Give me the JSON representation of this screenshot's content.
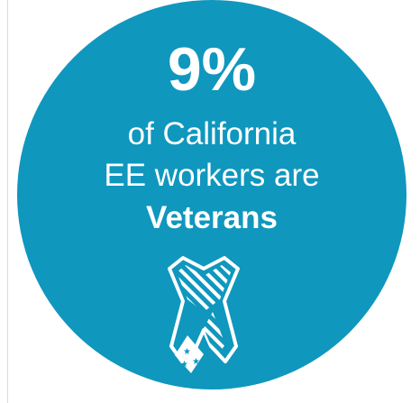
{
  "infographic": {
    "stat": "9%",
    "line1": "of California",
    "line2": "EE workers are",
    "emphasis": "Veterans"
  },
  "icons": {
    "ribbon": "ribbon-icon"
  },
  "colors": {
    "circle": "#0f97be",
    "text": "#ffffff",
    "page_bg": "#ffffff",
    "frame_line": "#d9d9d9"
  }
}
